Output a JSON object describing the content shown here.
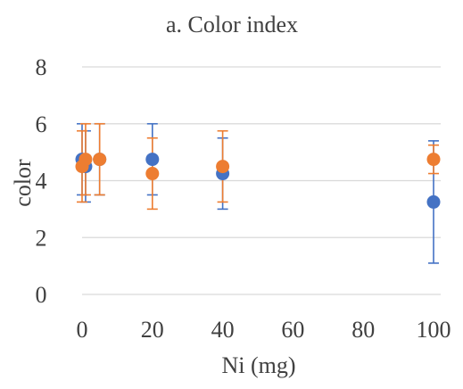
{
  "chart_data": {
    "type": "scatter",
    "title": "a. Color index",
    "xlabel": "Ni (mg)",
    "ylabel": "color",
    "xlim": [
      0,
      100
    ],
    "ylim": [
      0,
      8
    ],
    "x_ticks": [
      "0",
      "20",
      "40",
      "60",
      "80",
      "100"
    ],
    "y_ticks": [
      "0",
      "2",
      "4",
      "6",
      "8"
    ],
    "grid": true,
    "legend": "none",
    "series": [
      {
        "color": "#4472c4",
        "points": [
          {
            "x": 0,
            "y": 4.75,
            "err_low": 3.5,
            "err_high": 6.0
          },
          {
            "x": 1,
            "y": 4.5,
            "err_low": 3.25,
            "err_high": 5.75
          },
          {
            "x": 5,
            "y": 4.75,
            "err_low": 3.5,
            "err_high": 6.0
          },
          {
            "x": 20,
            "y": 4.75,
            "err_low": 3.5,
            "err_high": 6.0
          },
          {
            "x": 40,
            "y": 4.25,
            "err_low": 3.0,
            "err_high": 5.5
          },
          {
            "x": 100,
            "y": 3.25,
            "err_low": 1.1,
            "err_high": 5.4
          }
        ]
      },
      {
        "color": "#ed7d31",
        "points": [
          {
            "x": 0,
            "y": 4.5,
            "err_low": 3.25,
            "err_high": 5.75
          },
          {
            "x": 1,
            "y": 4.75,
            "err_low": 3.5,
            "err_high": 6.0
          },
          {
            "x": 5,
            "y": 4.75,
            "err_low": 3.5,
            "err_high": 6.0
          },
          {
            "x": 20,
            "y": 4.25,
            "err_low": 3.0,
            "err_high": 5.5
          },
          {
            "x": 40,
            "y": 4.5,
            "err_low": 3.25,
            "err_high": 5.75
          },
          {
            "x": 100,
            "y": 4.75,
            "err_low": 4.25,
            "err_high": 5.25
          }
        ]
      }
    ]
  }
}
